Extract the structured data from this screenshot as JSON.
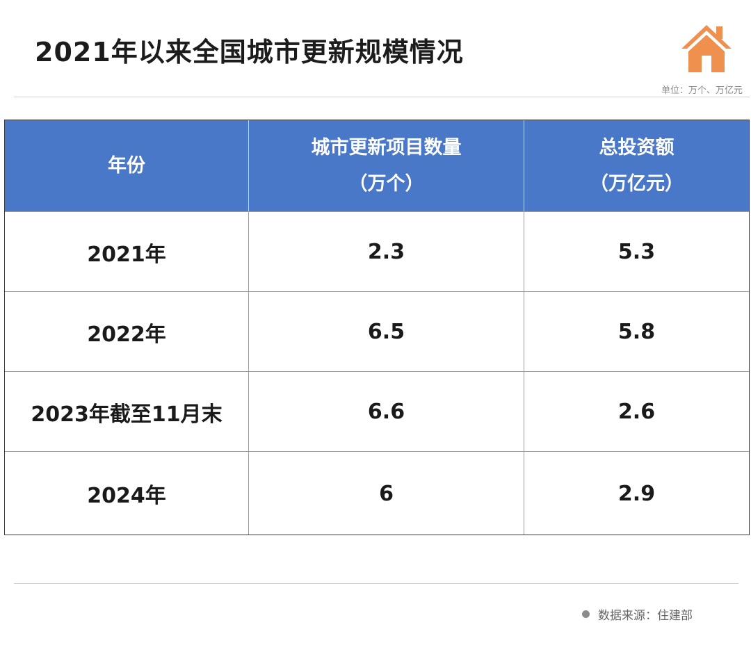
{
  "title": "2021年以来全国城市更新规模情况",
  "unit_note": "单位：万个、万亿元",
  "source_note": "数据来源：住建部",
  "icon": "house-icon",
  "colors": {
    "header_bg": "#4a78c8",
    "header_text": "#ffffff",
    "icon": "#f0904e"
  },
  "chart_data": {
    "type": "table",
    "columns": [
      {
        "line1": "年份",
        "line2": ""
      },
      {
        "line1": "城市更新项目数量",
        "line2": "（万个）"
      },
      {
        "line1": "总投资额",
        "line2": "（万亿元）"
      }
    ],
    "rows": [
      {
        "year": "2021年",
        "projects": "2.3",
        "investment": "5.3"
      },
      {
        "year": "2022年",
        "projects": "6.5",
        "investment": "5.8"
      },
      {
        "year": "2023年截至11月末",
        "projects": "6.6",
        "investment": "2.6"
      },
      {
        "year": "2024年",
        "projects": "6",
        "investment": "2.9"
      }
    ]
  }
}
